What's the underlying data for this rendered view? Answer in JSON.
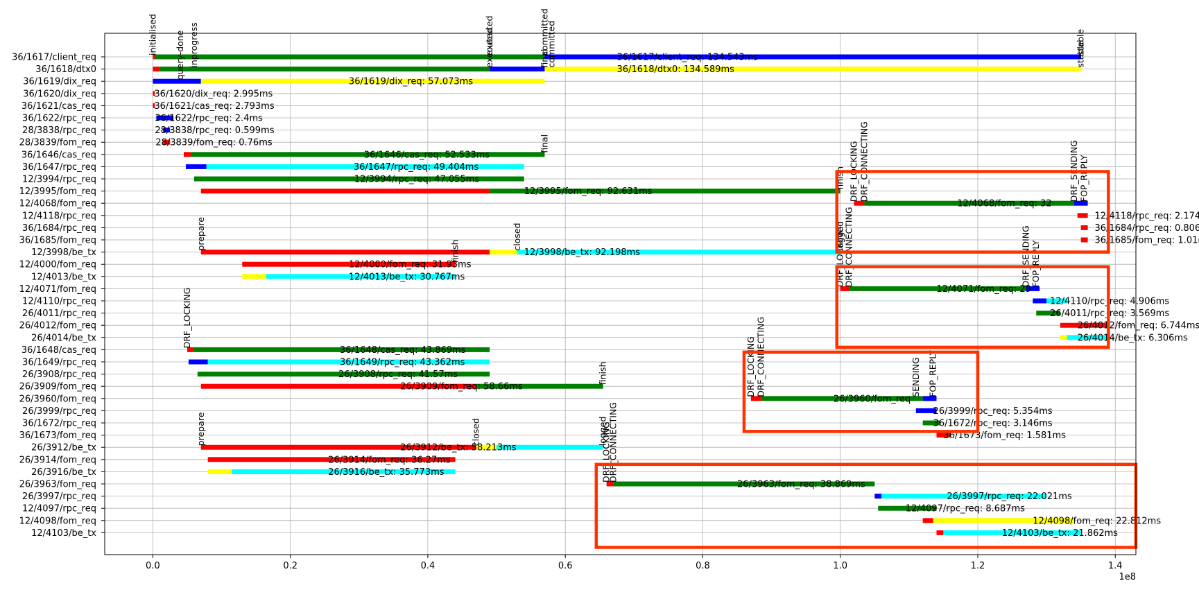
{
  "chart_data": {
    "type": "gantt",
    "x_multiplier_label": "1e8",
    "xlim": [
      -7000000.0,
      143000000.0
    ],
    "xticks": [
      0,
      20000000.0,
      40000000.0,
      60000000.0,
      80000000.0,
      100000000.0,
      120000000.0,
      140000000.0
    ],
    "xtick_labels": [
      "0.0",
      "0.2",
      "0.4",
      "0.6",
      "0.8",
      "1.0",
      "1.2",
      "1.4"
    ],
    "grid": true,
    "colors": {
      "red": "#ff0000",
      "green": "#008000",
      "blue": "#0000ff",
      "yellow": "#ffff00",
      "cyan": "#00ffff",
      "highlight": "#ff3300",
      "grid": "#b0b0b0"
    },
    "rows": [
      {
        "name": "36/1617/client_req",
        "label": "36/1617/client_req: 134.543ms",
        "label_x": 67500000.0,
        "segments": [
          [
            "red",
            0.0,
            300000.0
          ],
          [
            "green",
            300000.0,
            57000000.0
          ],
          [
            "blue",
            57000000.0,
            135000000.0
          ]
        ],
        "states": [
          [
            "initialised",
            0.0
          ],
          [
            "executed",
            49000000.0
          ],
          [
            "committed",
            57000000.0
          ],
          [
            "stable",
            135000000.0
          ]
        ]
      },
      {
        "name": "36/1618/dtx0",
        "label": "36/1618/dtx0: 134.589ms",
        "label_x": 67500000.0,
        "segments": [
          [
            "red",
            0.0,
            1000000.0
          ],
          [
            "green",
            1000000.0,
            49000000.0
          ],
          [
            "blue",
            49000000.0,
            57000000.0
          ],
          [
            "yellow",
            57000000.0,
            135000000.0
          ]
        ],
        "states": [
          [
            "inprogress",
            6000000.0
          ],
          [
            "executed",
            49000000.0
          ],
          [
            "final",
            57000000.0
          ],
          [
            "committed",
            58000000.0
          ],
          [
            "stable",
            135000000.0
          ]
        ]
      },
      {
        "name": "36/1619/dix_req",
        "label": "36/1619/dix_req: 57.073ms",
        "label_x": 28500000.0,
        "segments": [
          [
            "blue",
            0.0,
            7000000.0
          ],
          [
            "yellow",
            7000000.0,
            57000000.0
          ]
        ],
        "states": [
          [
            "query-done",
            4000000.0
          ]
        ]
      },
      {
        "name": "36/1620/dix_req",
        "label": "36/1620/dix_req: 2.995ms",
        "label_x": 200000.0,
        "segments": [
          [
            "red",
            0.0,
            300000.0
          ]
        ],
        "states": []
      },
      {
        "name": "36/1621/cas_req",
        "label": "36/1621/cas_req: 2.793ms",
        "label_x": 200000.0,
        "segments": [
          [
            "red",
            0.0,
            300000.0
          ]
        ],
        "states": []
      },
      {
        "name": "36/1622/rpc_req",
        "label": "36/1622/rpc_req: 2.4ms",
        "label_x": 300000.0,
        "segments": [
          [
            "blue",
            500000.0,
            3000000.0
          ]
        ],
        "states": []
      },
      {
        "name": "28/3838/rpc_req",
        "label": "28/3838/rpc_req: 0.599ms",
        "label_x": 300000.0,
        "segments": [
          [
            "blue",
            1500000.0,
            2500000.0
          ]
        ],
        "states": []
      },
      {
        "name": "28/3839/fom_req",
        "label": "28/3839/fom_req: 0.76ms",
        "label_x": 400000.0,
        "segments": [
          [
            "red",
            1500000.0,
            2500000.0
          ]
        ],
        "states": []
      },
      {
        "name": "36/1646/cas_req",
        "label": "36/1646/cas_req: 52.533ms",
        "label_x": 30700000.0,
        "segments": [
          [
            "red",
            4500000.0,
            5500000.0
          ],
          [
            "green",
            5500000.0,
            57000000.0
          ]
        ],
        "states": [
          [
            "final",
            57000000.0
          ]
        ]
      },
      {
        "name": "36/1647/rpc_req",
        "label": "36/1647/rpc_req: 49.404ms",
        "label_x": 29200000.0,
        "segments": [
          [
            "blue",
            4800000.0,
            7800000.0
          ],
          [
            "cyan",
            7800000.0,
            54000000.0
          ]
        ],
        "states": []
      },
      {
        "name": "12/3994/rpc_req",
        "label": "12/3994/rpc_req: 47.055ms",
        "label_x": 29300000.0,
        "segments": [
          [
            "green",
            6000000.0,
            54000000.0
          ]
        ],
        "states": []
      },
      {
        "name": "12/3995/fom_req",
        "label": "12/3995/fom_req: 92.631ms",
        "label_x": 54000000.0,
        "segments": [
          [
            "red",
            7000000.0,
            49000000.0
          ],
          [
            "green",
            49000000.0,
            100000000.0
          ]
        ],
        "states": [
          [
            "finish",
            100000000.0
          ]
        ]
      },
      {
        "name": "12/4068/fom_req",
        "label": "12/4068/fom_req: 32",
        "label_x": 117000000.0,
        "segments": [
          [
            "red",
            102000000.0,
            103500000.0
          ],
          [
            "green",
            103500000.0,
            134000000.0
          ],
          [
            "blue",
            134000000.0,
            136000000.0
          ]
        ],
        "states": [
          [
            "DRF_LOCKING",
            102000000.0
          ],
          [
            "DRF_CONNECTING",
            103500000.0
          ],
          [
            "DRF_SENDING",
            134000000.0
          ],
          [
            "FOP_REPLY",
            135500000.0
          ]
        ]
      },
      {
        "name": "12/4118/rpc_req",
        "label": "12/4118/rpc_req: 2.174ms",
        "label_x": 137000000.0,
        "segments": [
          [
            "red",
            134500000.0,
            136000000.0
          ]
        ],
        "states": []
      },
      {
        "name": "36/1684/rpc_req",
        "label": "36/1684/rpc_req: 0.806ms",
        "label_x": 137000000.0,
        "segments": [
          [
            "red",
            135000000.0,
            136000000.0
          ]
        ],
        "states": []
      },
      {
        "name": "36/1685/fom_req",
        "label": "36/1685/fom_req: 1.01ms",
        "label_x": 137000000.0,
        "segments": [
          [
            "red",
            135000000.0,
            136000000.0
          ]
        ],
        "states": []
      },
      {
        "name": "12/3998/be_tx",
        "label": "12/3998/be_tx: 92.198ms",
        "label_x": 54000000.0,
        "segments": [
          [
            "red",
            7000000.0,
            49000000.0
          ],
          [
            "yellow",
            49000000.0,
            53000000.0
          ],
          [
            "cyan",
            53000000.0,
            100000000.0
          ]
        ],
        "states": [
          [
            "prepare",
            7000000.0
          ],
          [
            "closed",
            53000000.0
          ],
          [
            "logged",
            100000000.0
          ]
        ]
      },
      {
        "name": "12/4000/fom_req",
        "label": "12/4000/fom_req: 31.93ms",
        "label_x": 28500000.0,
        "segments": [
          [
            "red",
            13000000.0,
            44000000.0
          ]
        ],
        "states": [
          [
            "finish",
            44000000.0
          ]
        ]
      },
      {
        "name": "12/4013/be_tx",
        "label": "12/4013/be_tx: 30.767ms",
        "label_x": 28500000.0,
        "segments": [
          [
            "yellow",
            13000000.0,
            16500000.0
          ],
          [
            "cyan",
            16500000.0,
            44000000.0
          ]
        ],
        "states": []
      },
      {
        "name": "12/4071/fom_req",
        "label": "12/4071/fom_req: 29",
        "label_x": 114000000.0,
        "segments": [
          [
            "red",
            100000000.0,
            101300000.0
          ],
          [
            "green",
            101300000.0,
            127000000.0
          ],
          [
            "blue",
            127000000.0,
            129000000.0
          ]
        ],
        "states": [
          [
            "DRF_LOCKING",
            100000000.0
          ],
          [
            "DRF_CONNECTING",
            101300000.0
          ],
          [
            "DRF_SENDING",
            127000000.0
          ],
          [
            "FOP_REPLY",
            128500000.0
          ]
        ]
      },
      {
        "name": "12/4110/rpc_req",
        "label": "12/4110/rpc_req: 4.906ms",
        "label_x": 130500000.0,
        "segments": [
          [
            "blue",
            128000000.0,
            130000000.0
          ],
          [
            "cyan",
            130000000.0,
            133000000.0
          ]
        ],
        "states": []
      },
      {
        "name": "26/4011/rpc_req",
        "label": "26/4011/rpc_req: 3.569ms",
        "label_x": 130500000.0,
        "segments": [
          [
            "green",
            128500000.0,
            132000000.0
          ]
        ],
        "states": []
      },
      {
        "name": "26/4012/fom_req",
        "label": "26/4012/fom_req: 6.744ms",
        "label_x": 134500000.0,
        "segments": [
          [
            "red",
            132000000.0,
            139000000.0
          ]
        ],
        "states": []
      },
      {
        "name": "26/4014/be_tx",
        "label": "26/4014/be_tx: 6.306ms",
        "label_x": 134500000.0,
        "segments": [
          [
            "yellow",
            132000000.0,
            133000000.0
          ],
          [
            "cyan",
            133000000.0,
            139000000.0
          ]
        ],
        "states": []
      },
      {
        "name": "36/1648/cas_req",
        "label": "36/1648/cas_req: 43.869ms",
        "label_x": 27200000.0,
        "segments": [
          [
            "red",
            5000000.0,
            6000000.0
          ],
          [
            "green",
            6000000.0,
            49000000.0
          ]
        ],
        "states": [
          [
            "DRF_LOCKING",
            5000000.0
          ]
        ]
      },
      {
        "name": "36/1649/rpc_req",
        "label": "36/1649/rpc_req: 43.362ms",
        "label_x": 27200000.0,
        "segments": [
          [
            "blue",
            5200000.0,
            8000000.0
          ],
          [
            "cyan",
            8000000.0,
            49000000.0
          ]
        ],
        "states": []
      },
      {
        "name": "26/3908/rpc_req",
        "label": "26/3908/rpc_req: 41.57ms",
        "label_x": 27000000.0,
        "segments": [
          [
            "green",
            6500000.0,
            49000000.0
          ]
        ],
        "states": []
      },
      {
        "name": "26/3909/fom_req",
        "label": "26/3909/fom_req: 58.66ms",
        "label_x": 36000000.0,
        "segments": [
          [
            "red",
            7000000.0,
            47000000.0
          ],
          [
            "green",
            47000000.0,
            65500000.0
          ]
        ],
        "states": [
          [
            "finish",
            65500000.0
          ]
        ]
      },
      {
        "name": "26/3960/fom_req",
        "label": "26/3960/fom_req",
        "label_x": 99000000.0,
        "segments": [
          [
            "red",
            87000000.0,
            88500000.0
          ],
          [
            "green",
            88500000.0,
            112000000.0
          ],
          [
            "blue",
            112000000.0,
            114000000.0
          ]
        ],
        "states": [
          [
            "DRF_LOCKING",
            87000000.0
          ],
          [
            "DRF_CONNECTING",
            88500000.0
          ],
          [
            "SENDING",
            111000000.0
          ],
          [
            "FOP_REPLY",
            113500000.0
          ]
        ]
      },
      {
        "name": "26/3999/rpc_req",
        "label": "26/3999/rpc_req: 5.354ms",
        "label_x": 113500000.0,
        "segments": [
          [
            "blue",
            111000000.0,
            114000000.0
          ]
        ],
        "states": []
      },
      {
        "name": "36/1672/rpc_req",
        "label": "36/1672/rpc_req: 3.146ms",
        "label_x": 113500000.0,
        "segments": [
          [
            "green",
            112000000.0,
            114500000.0
          ]
        ],
        "states": []
      },
      {
        "name": "36/1673/fom_req",
        "label": "36/1673/fom_req: 1.581ms",
        "label_x": 115000000.0,
        "segments": [
          [
            "red",
            114000000.0,
            116000000.0
          ]
        ],
        "states": []
      },
      {
        "name": "26/3912/be_tx",
        "label": "26/3912/be_tx: 58.213ms",
        "label_x": 36000000.0,
        "segments": [
          [
            "red",
            7000000.0,
            47000000.0
          ],
          [
            "yellow",
            47000000.0,
            50000000.0
          ],
          [
            "cyan",
            50000000.0,
            65500000.0
          ]
        ],
        "states": [
          [
            "prepare",
            7000000.0
          ],
          [
            "closed",
            47000000.0
          ],
          [
            "logged",
            65500000.0
          ]
        ]
      },
      {
        "name": "26/3914/fom_req",
        "label": "26/3914/fom_req: 36.27ms",
        "label_x": 25500000.0,
        "segments": [
          [
            "red",
            8000000.0,
            44000000.0
          ]
        ],
        "states": []
      },
      {
        "name": "26/3916/be_tx",
        "label": "26/3916/be_tx: 35.773ms",
        "label_x": 25500000.0,
        "segments": [
          [
            "yellow",
            8000000.0,
            11500000.0
          ],
          [
            "cyan",
            11500000.0,
            44000000.0
          ]
        ],
        "states": []
      },
      {
        "name": "26/3963/fom_req",
        "label": "26/3963/fom_req: 38.869ms",
        "label_x": 85000000.0,
        "segments": [
          [
            "red",
            66000000.0,
            67000000.0
          ],
          [
            "green",
            67000000.0,
            105000000.0
          ]
        ],
        "states": [
          [
            "DRF_LOCKING",
            66000000.0
          ],
          [
            "DRF_CONNECTING",
            67000000.0
          ]
        ]
      },
      {
        "name": "26/3997/rpc_req",
        "label": "26/3997/rpc_req: 22.021ms",
        "label_x": 115500000.0,
        "segments": [
          [
            "blue",
            105000000.0,
            106000000.0
          ],
          [
            "cyan",
            106000000.0,
            130000000.0
          ]
        ],
        "states": []
      },
      {
        "name": "12/4097/rpc_req",
        "label": "12/4097/rpc_req: 8.687ms",
        "label_x": 109500000.0,
        "segments": [
          [
            "green",
            105500000.0,
            114000000.0
          ]
        ],
        "states": []
      },
      {
        "name": "12/4098/fom_req",
        "label": "12/4098/fom_req: 22.812ms",
        "label_x": 128000000.0,
        "segments": [
          [
            "red",
            112000000.0,
            113500000.0
          ],
          [
            "yellow",
            113500000.0,
            134000000.0
          ]
        ],
        "states": []
      },
      {
        "name": "12/4103/be_tx",
        "label": "12/4103/be_tx: 21.862ms",
        "label_x": 123500000.0,
        "segments": [
          [
            "red",
            114000000.0,
            115000000.0
          ],
          [
            "cyan",
            115000000.0,
            135000000.0
          ]
        ],
        "states": []
      }
    ],
    "highlight_boxes": [
      {
        "x0": 99500000.0,
        "x1": 139000000.0,
        "row0": 9.4,
        "row1": 16.0
      },
      {
        "x0": 99500000.0,
        "x1": 139000000.0,
        "row0": 17.2,
        "row1": 23.8
      },
      {
        "x0": 86000000.0,
        "x1": 120000000.0,
        "row0": 24.2,
        "row1": 30.7
      },
      {
        "x0": 64500000.0,
        "x1": 143000000.0,
        "row0": 33.4,
        "row1": 40.2
      }
    ]
  }
}
